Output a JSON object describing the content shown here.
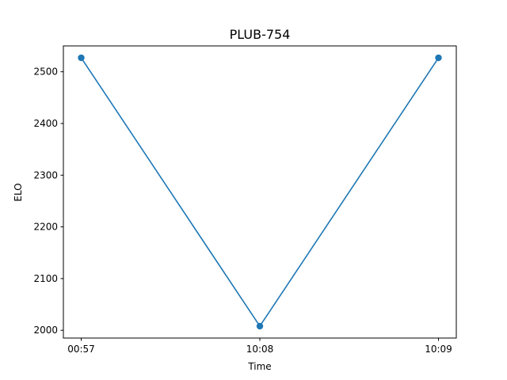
{
  "chart_data": {
    "type": "line",
    "title": "PLUB-754",
    "xlabel": "Time",
    "ylabel": "ELO",
    "categories": [
      "00:57",
      "10:08",
      "10:09"
    ],
    "series": [
      {
        "values": [
          2527,
          2008,
          2527
        ],
        "marker": "circle",
        "color": "#1f77b4"
      }
    ],
    "ylim": [
      1985,
      2550
    ],
    "yticks": [
      2000,
      2100,
      2200,
      2300,
      2400,
      2500
    ],
    "grid": false
  }
}
